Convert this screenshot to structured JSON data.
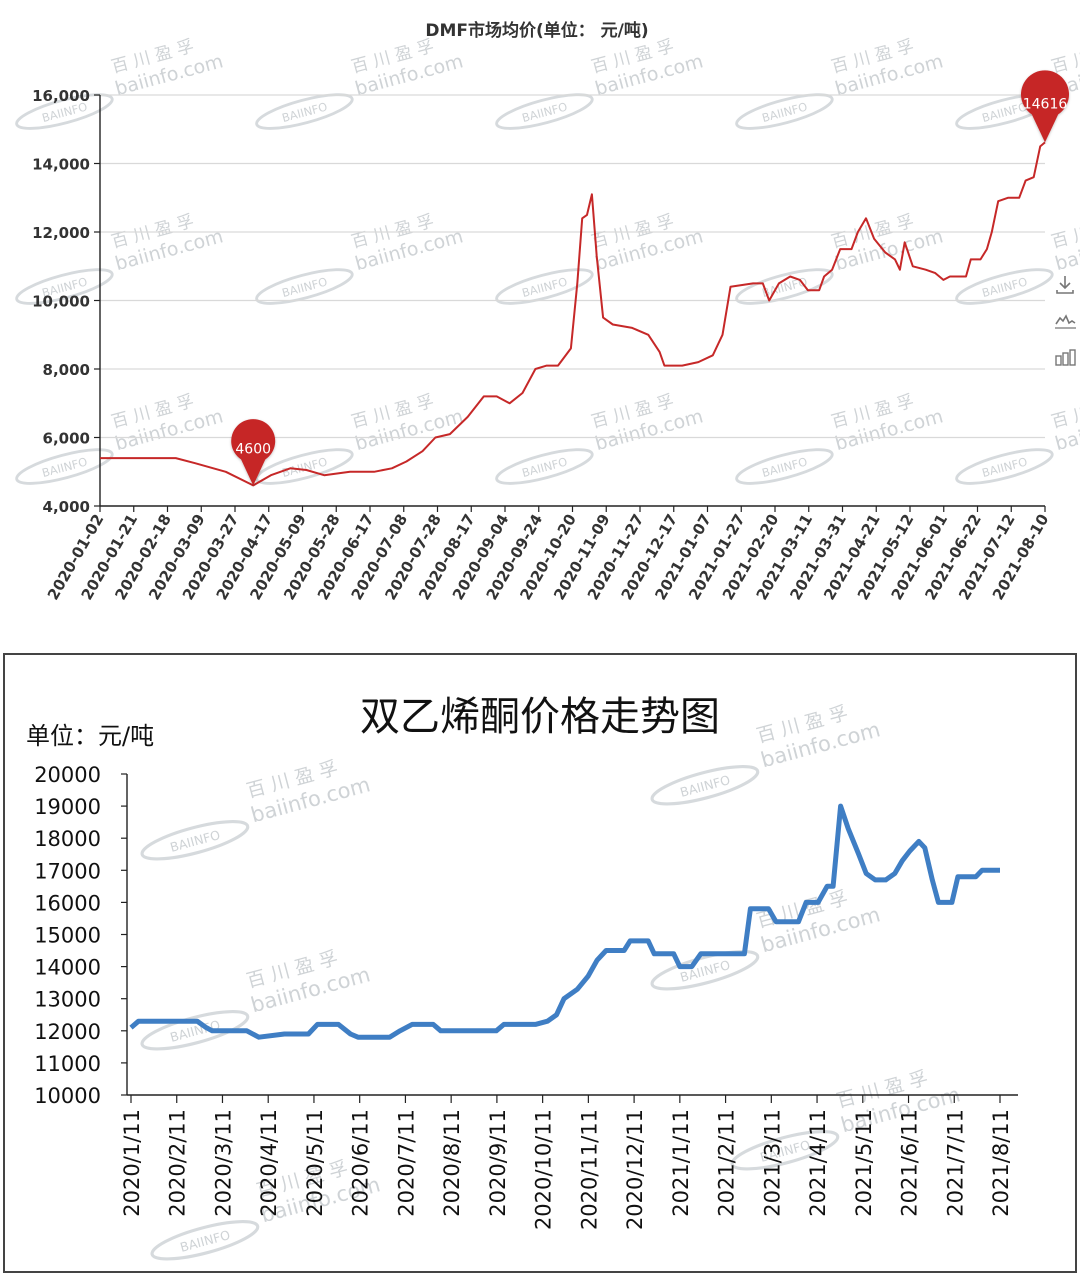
{
  "chart_data": [
    {
      "type": "line",
      "title": "DMF市场均价(单位： 元/吨)",
      "ylim": [
        4000,
        16000
      ],
      "y_ticks": [
        4000,
        6000,
        8000,
        10000,
        12000,
        14000,
        16000
      ],
      "y_tick_labels": [
        "4,000",
        "6,000",
        "8,000",
        "10,000",
        "12,000",
        "14,000",
        "16,000"
      ],
      "x_range": [
        "2020-01-02",
        "2021-08-10"
      ],
      "x_tick_labels": [
        "2020-01-02",
        "2020-01-21",
        "2020-02-18",
        "2020-03-09",
        "2020-03-27",
        "2020-04-17",
        "2020-05-09",
        "2020-05-28",
        "2020-06-17",
        "2020-07-08",
        "2020-07-28",
        "2020-08-17",
        "2020-09-04",
        "2020-09-24",
        "2020-10-20",
        "2020-11-09",
        "2020-11-27",
        "2020-12-17",
        "2021-01-07",
        "2021-01-27",
        "2021-02-20",
        "2021-03-11",
        "2021-03-31",
        "2021-04-21",
        "2021-05-12",
        "2021-06-01",
        "2021-06-22",
        "2021-07-12",
        "2021-08-10"
      ],
      "grid": true,
      "color": "#c62828",
      "annotations": [
        {
          "x": "2020-04-06",
          "y": 4600,
          "label": "4600"
        },
        {
          "x": "2021-08-10",
          "y": 14616,
          "label": "14616"
        }
      ],
      "points": [
        [
          "2020-01-02",
          5400
        ],
        [
          "2020-02-18",
          5400
        ],
        [
          "2020-03-01",
          5250
        ],
        [
          "2020-03-20",
          5000
        ],
        [
          "2020-04-06",
          4600
        ],
        [
          "2020-04-17",
          4900
        ],
        [
          "2020-04-29",
          5100
        ],
        [
          "2020-05-09",
          5050
        ],
        [
          "2020-05-20",
          4900
        ],
        [
          "2020-06-05",
          5000
        ],
        [
          "2020-06-20",
          5000
        ],
        [
          "2020-07-01",
          5100
        ],
        [
          "2020-07-10",
          5300
        ],
        [
          "2020-07-20",
          5600
        ],
        [
          "2020-07-28",
          6000
        ],
        [
          "2020-08-06",
          6100
        ],
        [
          "2020-08-17",
          6600
        ],
        [
          "2020-08-27",
          7200
        ],
        [
          "2020-09-04",
          7200
        ],
        [
          "2020-09-12",
          7000
        ],
        [
          "2020-09-20",
          7300
        ],
        [
          "2020-09-28",
          8000
        ],
        [
          "2020-10-05",
          8100
        ],
        [
          "2020-10-12",
          8100
        ],
        [
          "2020-10-20",
          8600
        ],
        [
          "2020-10-24",
          10500
        ],
        [
          "2020-10-27",
          12400
        ],
        [
          "2020-10-30",
          12500
        ],
        [
          "2020-11-02",
          13100
        ],
        [
          "2020-11-05",
          11300
        ],
        [
          "2020-11-09",
          9500
        ],
        [
          "2020-11-15",
          9300
        ],
        [
          "2020-11-27",
          9200
        ],
        [
          "2020-12-07",
          9000
        ],
        [
          "2020-12-14",
          8500
        ],
        [
          "2020-12-17",
          8100
        ],
        [
          "2020-12-28",
          8100
        ],
        [
          "2021-01-07",
          8200
        ],
        [
          "2021-01-16",
          8400
        ],
        [
          "2021-01-22",
          9000
        ],
        [
          "2021-01-27",
          10400
        ],
        [
          "2021-02-10",
          10500
        ],
        [
          "2021-02-16",
          10500
        ],
        [
          "2021-02-20",
          10000
        ],
        [
          "2021-02-26",
          10500
        ],
        [
          "2021-03-05",
          10700
        ],
        [
          "2021-03-11",
          10600
        ],
        [
          "2021-03-16",
          10300
        ],
        [
          "2021-03-23",
          10300
        ],
        [
          "2021-03-26",
          10700
        ],
        [
          "2021-03-31",
          10900
        ],
        [
          "2021-04-05",
          11500
        ],
        [
          "2021-04-12",
          11500
        ],
        [
          "2021-04-16",
          12000
        ],
        [
          "2021-04-21",
          12400
        ],
        [
          "2021-04-26",
          11800
        ],
        [
          "2021-05-03",
          11400
        ],
        [
          "2021-05-09",
          11200
        ],
        [
          "2021-05-12",
          10900
        ],
        [
          "2021-05-15",
          11700
        ],
        [
          "2021-05-20",
          11000
        ],
        [
          "2021-05-28",
          10900
        ],
        [
          "2021-06-03",
          10800
        ],
        [
          "2021-06-08",
          10600
        ],
        [
          "2021-06-12",
          10700
        ],
        [
          "2021-06-22",
          10700
        ],
        [
          "2021-06-25",
          11200
        ],
        [
          "2021-07-01",
          11200
        ],
        [
          "2021-07-05",
          11500
        ],
        [
          "2021-07-08",
          12000
        ],
        [
          "2021-07-12",
          12900
        ],
        [
          "2021-07-18",
          13000
        ],
        [
          "2021-07-25",
          13000
        ],
        [
          "2021-07-29",
          13500
        ],
        [
          "2021-08-03",
          13600
        ],
        [
          "2021-08-07",
          14500
        ],
        [
          "2021-08-10",
          14616
        ]
      ]
    },
    {
      "type": "line",
      "title": "双乙烯酮价格走势图",
      "ylabel": "单位：元/吨",
      "ylim": [
        10000,
        20000
      ],
      "y_ticks": [
        10000,
        11000,
        12000,
        13000,
        14000,
        15000,
        16000,
        17000,
        18000,
        19000,
        20000
      ],
      "x_range": [
        "2020-01-11",
        "2021-08-11"
      ],
      "x_tick_labels": [
        "2020/1/11",
        "2020/2/11",
        "2020/3/11",
        "2020/4/11",
        "2020/5/11",
        "2020/6/11",
        "2020/7/11",
        "2020/8/11",
        "2020/9/11",
        "2020/10/11",
        "2020/11/11",
        "2020/12/11",
        "2021/1/11",
        "2021/2/11",
        "2021/3/11",
        "2021/4/11",
        "2021/5/11",
        "2021/6/11",
        "2021/7/11",
        "2021/8/11"
      ],
      "grid": false,
      "color": "#3f7ec4",
      "points": [
        [
          "2020-01-11",
          12100
        ],
        [
          "2020-01-16",
          12300
        ],
        [
          "2020-02-24",
          12300
        ],
        [
          "2020-03-01",
          12100
        ],
        [
          "2020-03-05",
          12000
        ],
        [
          "2020-03-20",
          12000
        ],
        [
          "2020-03-28",
          12000
        ],
        [
          "2020-04-05",
          11800
        ],
        [
          "2020-04-22",
          11900
        ],
        [
          "2020-05-08",
          11900
        ],
        [
          "2020-05-14",
          12200
        ],
        [
          "2020-05-28",
          12200
        ],
        [
          "2020-06-05",
          11900
        ],
        [
          "2020-06-10",
          11800
        ],
        [
          "2020-07-01",
          11800
        ],
        [
          "2020-07-08",
          12000
        ],
        [
          "2020-07-16",
          12200
        ],
        [
          "2020-07-30",
          12200
        ],
        [
          "2020-08-04",
          12000
        ],
        [
          "2020-08-12",
          12000
        ],
        [
          "2020-09-10",
          12000
        ],
        [
          "2020-09-15",
          12200
        ],
        [
          "2020-10-06",
          12200
        ],
        [
          "2020-10-14",
          12300
        ],
        [
          "2020-10-20",
          12500
        ],
        [
          "2020-10-25",
          13000
        ],
        [
          "2020-11-03",
          13300
        ],
        [
          "2020-11-10",
          13700
        ],
        [
          "2020-11-16",
          14200
        ],
        [
          "2020-11-22",
          14500
        ],
        [
          "2020-12-04",
          14500
        ],
        [
          "2020-12-08",
          14800
        ],
        [
          "2020-12-20",
          14800
        ],
        [
          "2020-12-24",
          14400
        ],
        [
          "2021-01-06",
          14400
        ],
        [
          "2021-01-10",
          14000
        ],
        [
          "2021-01-18",
          14000
        ],
        [
          "2021-01-24",
          14400
        ],
        [
          "2021-02-22",
          14400
        ],
        [
          "2021-02-26",
          15800
        ],
        [
          "2021-03-10",
          15800
        ],
        [
          "2021-03-15",
          15400
        ],
        [
          "2021-03-30",
          15400
        ],
        [
          "2021-04-04",
          16000
        ],
        [
          "2021-04-12",
          16000
        ],
        [
          "2021-04-18",
          16500
        ],
        [
          "2021-04-22",
          16500
        ],
        [
          "2021-04-27",
          19000
        ],
        [
          "2021-05-02",
          18300
        ],
        [
          "2021-05-09",
          17500
        ],
        [
          "2021-05-14",
          16900
        ],
        [
          "2021-05-20",
          16700
        ],
        [
          "2021-05-27",
          16700
        ],
        [
          "2021-06-02",
          16900
        ],
        [
          "2021-06-07",
          17300
        ],
        [
          "2021-06-12",
          17600
        ],
        [
          "2021-06-18",
          17900
        ],
        [
          "2021-06-22",
          17700
        ],
        [
          "2021-06-27",
          16700
        ],
        [
          "2021-07-01",
          16000
        ],
        [
          "2021-07-10",
          16000
        ],
        [
          "2021-07-14",
          16800
        ],
        [
          "2021-07-26",
          16800
        ],
        [
          "2021-07-30",
          17000
        ],
        [
          "2021-08-11",
          17000
        ]
      ]
    }
  ],
  "toolbox": {
    "download_icon": "download-icon",
    "line_icon": "line-chart-icon",
    "bar_icon": "bar-chart-icon"
  },
  "watermark": {
    "logo": "BAIINFO",
    "cn": "百 川 盈 孚",
    "url": "baiinfo.com"
  }
}
